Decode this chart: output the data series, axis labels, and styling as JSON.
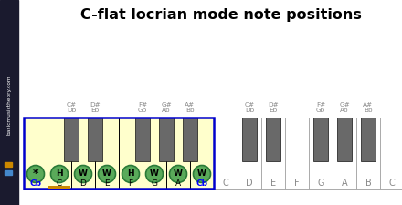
{
  "title": "C-flat locrian mode note positions",
  "title_fontsize": 11.5,
  "bg_color": "#ffffff",
  "highlighted_bg": "#ffffcc",
  "white_key_color": "#ffffff",
  "black_key_color": "#696969",
  "highlight_box_color": "#0000cc",
  "note_circle_color": "#5aaa5a",
  "note_circle_edge": "#2a7a38",
  "white_labels_1": [
    "Cb",
    "C",
    "D",
    "E",
    "F",
    "G",
    "A",
    "Cb"
  ],
  "interval_labels": [
    "*",
    "H",
    "W",
    "W",
    "H",
    "W",
    "W",
    "W"
  ],
  "white_notes_2": [
    "C",
    "D",
    "E",
    "F",
    "G",
    "A",
    "B",
    "C"
  ],
  "label_colors_1": [
    "blue",
    "black",
    "black",
    "black",
    "black",
    "black",
    "black",
    "blue"
  ],
  "sidebar_text": "basicmusictheory.com",
  "sidebar_bg": "#1a1a2e",
  "orange_color": "#cc8800",
  "blue_sq_color": "#4488cc"
}
